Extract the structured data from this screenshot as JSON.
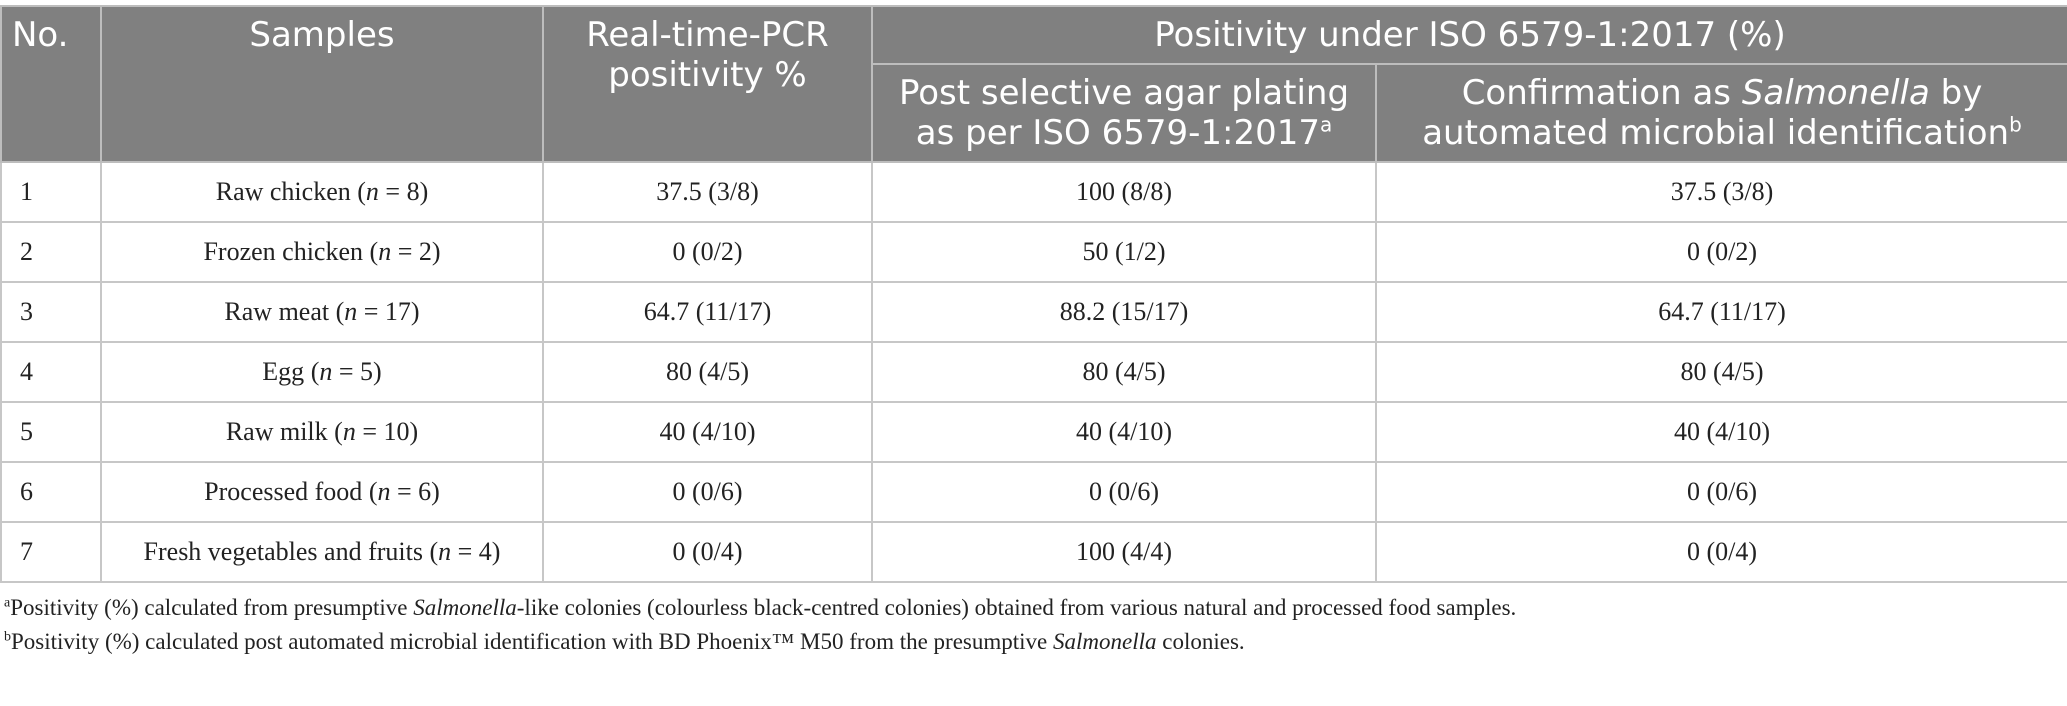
{
  "header": {
    "col_no": "No.",
    "col_samples": "Samples",
    "col_pcr_line1": "Real-time-PCR",
    "col_pcr_line2": "positivity %",
    "col_iso_group": "Positivity under ISO 6579-1:2017 (%)",
    "col_plating_line1": "Post selective agar plating",
    "col_plating_line2": "as per ISO 6579-1:2017",
    "col_plating_sup": "a",
    "col_confirm_pre": "Confirmation as ",
    "col_confirm_italic": "Salmonella",
    "col_confirm_post": " by",
    "col_confirm_line2": "automated microbial identification",
    "col_confirm_sup": "b"
  },
  "rows": [
    {
      "no": "1",
      "sample": "Raw chicken",
      "n_label": "n",
      "n_value": " = 8)",
      "pcr": "37.5 (3/8)",
      "plating": "100 (8/8)",
      "confirm": "37.5 (3/8)"
    },
    {
      "no": "2",
      "sample": "Frozen chicken",
      "n_label": "n",
      "n_value": " = 2)",
      "pcr": "0 (0/2)",
      "plating": "50 (1/2)",
      "confirm": "0 (0/2)"
    },
    {
      "no": "3",
      "sample": "Raw meat",
      "n_label": "n",
      "n_value": " = 17)",
      "pcr": "64.7 (11/17)",
      "plating": "88.2 (15/17)",
      "confirm": "64.7 (11/17)"
    },
    {
      "no": "4",
      "sample": "Egg",
      "n_label": "n",
      "n_value": " = 5)",
      "pcr": "80 (4/5)",
      "plating": "80 (4/5)",
      "confirm": "80 (4/5)"
    },
    {
      "no": "5",
      "sample": "Raw milk",
      "n_label": "n",
      "n_value": " = 10)",
      "pcr": "40 (4/10)",
      "plating": "40 (4/10)",
      "confirm": "40 (4/10)"
    },
    {
      "no": "6",
      "sample": "Processed food",
      "n_label": "n",
      "n_value": " = 6)",
      "pcr": "0 (0/6)",
      "plating": "0 (0/6)",
      "confirm": "0 (0/6)"
    },
    {
      "no": "7",
      "sample": "Fresh vegetables and fruits",
      "n_label": "n",
      "n_value": " = 4)",
      "pcr": "0 (0/4)",
      "plating": "100 (4/4)",
      "confirm": "0 (0/4)"
    }
  ],
  "footnotes": {
    "a_sup": "a",
    "a_pre": "Positivity (%) calculated from presumptive ",
    "a_italic": "Salmonella",
    "a_post": "-like colonies (colourless black-centred colonies) obtained from various natural and processed food samples.",
    "b_sup": "b",
    "b_pre": "Positivity (%) calculated post automated microbial identification with BD Phoenix™ M50 from the presumptive ",
    "b_italic": "Salmonella",
    "b_post": " colonies."
  }
}
